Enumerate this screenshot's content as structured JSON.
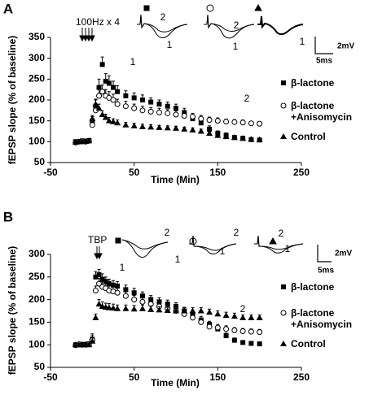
{
  "chart_data": [
    {
      "type": "scatter",
      "panel_label": "A",
      "stimulus_label": "100Hz x 4",
      "x_label": "Time (Min)",
      "y_label": "fEPSP slope (% of baseline)",
      "xlim": [
        -50,
        250
      ],
      "xticks": [
        -50,
        50,
        150,
        250
      ],
      "ylim": [
        50,
        350
      ],
      "yticks": [
        50,
        100,
        150,
        200,
        250,
        300,
        350
      ],
      "x": [
        -20,
        -16,
        -12,
        -8,
        -4,
        0,
        4,
        8,
        12,
        16,
        20,
        25,
        30,
        40,
        50,
        60,
        70,
        80,
        90,
        100,
        110,
        120,
        130,
        140,
        150,
        160,
        170,
        180,
        190,
        200
      ],
      "series": [
        {
          "name": "β-lactone",
          "color": "#000000",
          "marker": "square",
          "values": [
            100,
            100,
            102,
            101,
            103,
            150,
            185,
            230,
            285,
            245,
            240,
            230,
            220,
            210,
            205,
            200,
            195,
            190,
            185,
            180,
            170,
            155,
            145,
            130,
            120,
            115,
            110,
            108,
            105,
            104
          ],
          "errors": [
            4,
            4,
            4,
            4,
            4,
            10,
            15,
            20,
            18,
            18,
            18,
            15,
            14,
            12,
            12,
            12,
            10,
            10,
            10,
            10,
            10,
            8,
            8,
            8,
            6,
            6,
            5,
            5,
            4,
            4
          ]
        },
        {
          "name": "β-lactone +Anisomycin",
          "color": "#000000",
          "marker": "circle",
          "values": [
            98,
            100,
            101,
            100,
            102,
            140,
            175,
            210,
            220,
            210,
            205,
            200,
            190,
            185,
            180,
            175,
            172,
            170,
            168,
            165,
            162,
            160,
            155,
            152,
            150,
            148,
            147,
            146,
            144,
            143
          ],
          "errors": [
            4,
            4,
            4,
            4,
            4,
            10,
            14,
            18,
            16,
            15,
            15,
            14,
            12,
            12,
            10,
            10,
            10,
            10,
            9,
            9,
            8,
            8,
            8,
            7,
            7,
            6,
            6,
            6,
            5,
            5
          ]
        },
        {
          "name": "Control",
          "color": "#000000",
          "marker": "triangle",
          "values": [
            99,
            100,
            100,
            101,
            102,
            155,
            190,
            180,
            165,
            158,
            150,
            148,
            145,
            140,
            138,
            136,
            135,
            134,
            133,
            132,
            130,
            128,
            125,
            120,
            115,
            112,
            110,
            108,
            106,
            105
          ],
          "errors": [
            3,
            3,
            3,
            3,
            3,
            8,
            12,
            10,
            9,
            8,
            8,
            7,
            7,
            6,
            6,
            6,
            6,
            5,
            5,
            5,
            5,
            5,
            5,
            4,
            4,
            4,
            4,
            3,
            3,
            3
          ]
        }
      ],
      "annotations": [
        "1",
        "2"
      ],
      "insets": [
        {
          "labels": [
            "2",
            "1"
          ]
        },
        {
          "labels": [
            "2",
            "1"
          ]
        },
        {
          "labels": [
            "1"
          ]
        }
      ],
      "scale_bar": {
        "y_label": "2mV",
        "x_label": "5ms"
      }
    },
    {
      "type": "scatter",
      "panel_label": "B",
      "stimulus_label": "TBP",
      "x_label": "Time (Min)",
      "y_label": "fEPSP slope (% of baseline)",
      "xlim": [
        -50,
        250
      ],
      "xticks": [
        -50,
        50,
        150,
        250
      ],
      "ylim": [
        50,
        300
      ],
      "yticks": [
        50,
        100,
        150,
        200,
        250,
        300
      ],
      "x": [
        -20,
        -16,
        -12,
        -8,
        -4,
        0,
        4,
        8,
        12,
        16,
        20,
        25,
        30,
        40,
        50,
        60,
        70,
        80,
        90,
        100,
        110,
        120,
        130,
        140,
        150,
        160,
        170,
        180,
        190,
        200
      ],
      "series": [
        {
          "name": "β-lactone",
          "color": "#000000",
          "marker": "square",
          "values": [
            100,
            100,
            101,
            100,
            102,
            112,
            250,
            255,
            245,
            240,
            235,
            232,
            230,
            222,
            215,
            208,
            200,
            195,
            190,
            185,
            175,
            165,
            155,
            145,
            135,
            120,
            110,
            105,
            103,
            102
          ],
          "errors": [
            4,
            4,
            4,
            4,
            4,
            12,
            12,
            12,
            12,
            10,
            10,
            10,
            10,
            10,
            10,
            9,
            9,
            9,
            9,
            8,
            8,
            8,
            8,
            7,
            7,
            6,
            5,
            4,
            4,
            3
          ]
        },
        {
          "name": "β-lactone +Anisomycin",
          "color": "#000000",
          "marker": "circle",
          "values": [
            99,
            101,
            100,
            100,
            101,
            110,
            220,
            235,
            228,
            225,
            220,
            218,
            215,
            208,
            200,
            195,
            190,
            185,
            180,
            175,
            168,
            160,
            150,
            140,
            138,
            135,
            132,
            130,
            129,
            128
          ],
          "errors": [
            4,
            4,
            4,
            4,
            4,
            10,
            10,
            12,
            12,
            10,
            10,
            10,
            10,
            9,
            9,
            9,
            9,
            8,
            8,
            8,
            8,
            8,
            8,
            7,
            7,
            7,
            6,
            6,
            6,
            6
          ]
        },
        {
          "name": "Control",
          "color": "#000000",
          "marker": "triangle",
          "values": [
            100,
            100,
            100,
            101,
            100,
            108,
            160,
            190,
            185,
            183,
            182,
            181,
            180,
            180,
            179,
            180,
            178,
            177,
            176,
            175,
            175,
            175,
            175,
            172,
            168,
            165,
            163,
            160,
            160,
            160
          ],
          "errors": [
            3,
            3,
            3,
            3,
            3,
            8,
            8,
            10,
            10,
            9,
            9,
            9,
            8,
            8,
            8,
            8,
            8,
            7,
            7,
            7,
            7,
            7,
            7,
            7,
            7,
            7,
            7,
            6,
            6,
            6
          ]
        }
      ],
      "annotations": [
        "1",
        "2"
      ],
      "insets": [
        {
          "labels": [
            "2",
            "1"
          ]
        },
        {
          "labels": [
            "2",
            "1"
          ]
        },
        {
          "labels": [
            "2",
            "1"
          ]
        }
      ],
      "scale_bar": {
        "y_label": "2mV",
        "x_label": "5ms"
      }
    }
  ]
}
